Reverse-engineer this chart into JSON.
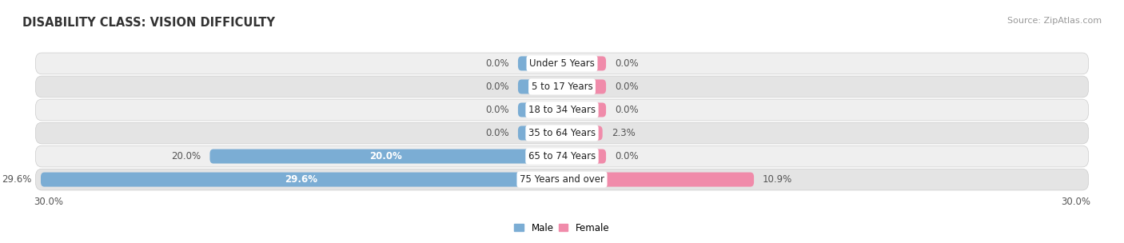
{
  "title": "DISABILITY CLASS: VISION DIFFICULTY",
  "source": "Source: ZipAtlas.com",
  "categories": [
    "Under 5 Years",
    "5 to 17 Years",
    "18 to 34 Years",
    "35 to 64 Years",
    "65 to 74 Years",
    "75 Years and over"
  ],
  "male_values": [
    0.0,
    0.0,
    0.0,
    0.0,
    20.0,
    29.6
  ],
  "female_values": [
    0.0,
    0.0,
    0.0,
    2.3,
    0.0,
    10.9
  ],
  "male_color": "#7BADD4",
  "female_color": "#F08BAA",
  "row_bg_even": "#EFEFEF",
  "row_bg_odd": "#E4E4E4",
  "xlim": 30.0,
  "min_bar_width": 2.5,
  "label_fontsize": 8.5,
  "title_fontsize": 10.5,
  "source_fontsize": 8,
  "category_fontsize": 8.5,
  "bar_height": 0.62,
  "legend_male": "Male",
  "legend_female": "Female"
}
